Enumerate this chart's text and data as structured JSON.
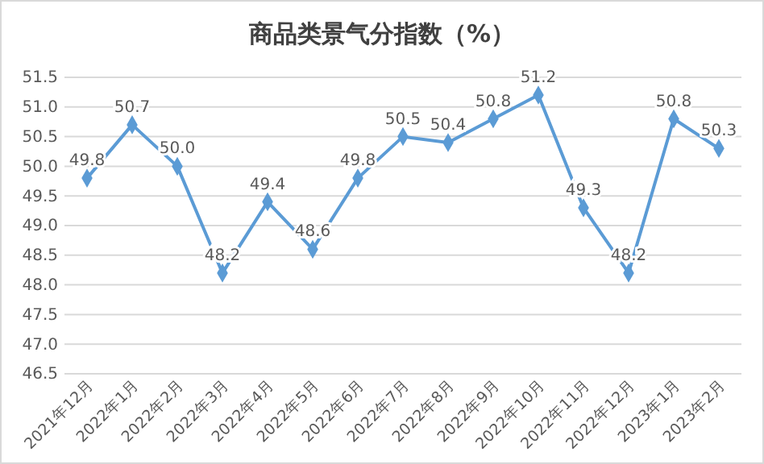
{
  "chart_data": {
    "type": "line",
    "title": "商品类景气分指数（%）",
    "categories": [
      "2021年12月",
      "2022年1月",
      "2022年2月",
      "2022年3月",
      "2022年4月",
      "2022年5月",
      "2022年6月",
      "2022年7月",
      "2022年8月",
      "2022年9月",
      "2022年10月",
      "2022年11月",
      "2022年12月",
      "2023年1月",
      "2023年2月"
    ],
    "series": [
      {
        "color": "#5b9bd5",
        "values": [
          49.8,
          50.7,
          50.0,
          48.2,
          49.4,
          48.6,
          49.8,
          50.5,
          50.4,
          50.8,
          51.2,
          49.3,
          48.2,
          50.8,
          50.3
        ],
        "value_labels": [
          "49.8",
          "50.7",
          "50.0",
          "48.2",
          "49.4",
          "48.6",
          "49.8",
          "50.5",
          "50.4",
          "50.8",
          "51.2",
          "49.3",
          "48.2",
          "50.8",
          "50.3"
        ]
      }
    ],
    "ylim": [
      46.5,
      51.5
    ],
    "yticks": [
      46.5,
      {
        "value": 47,
        "label": "47.0"
      },
      47.5,
      {
        "value": 48,
        "label": "48.0"
      },
      48.5,
      {
        "value": 49,
        "label": "49.0"
      },
      49.5,
      {
        "value": 50,
        "label": "50.0"
      },
      50.5,
      {
        "value": 51,
        "label": "51.0"
      },
      51.5
    ],
    "grid": "y",
    "marker": "diamond",
    "line_style": "solid"
  }
}
